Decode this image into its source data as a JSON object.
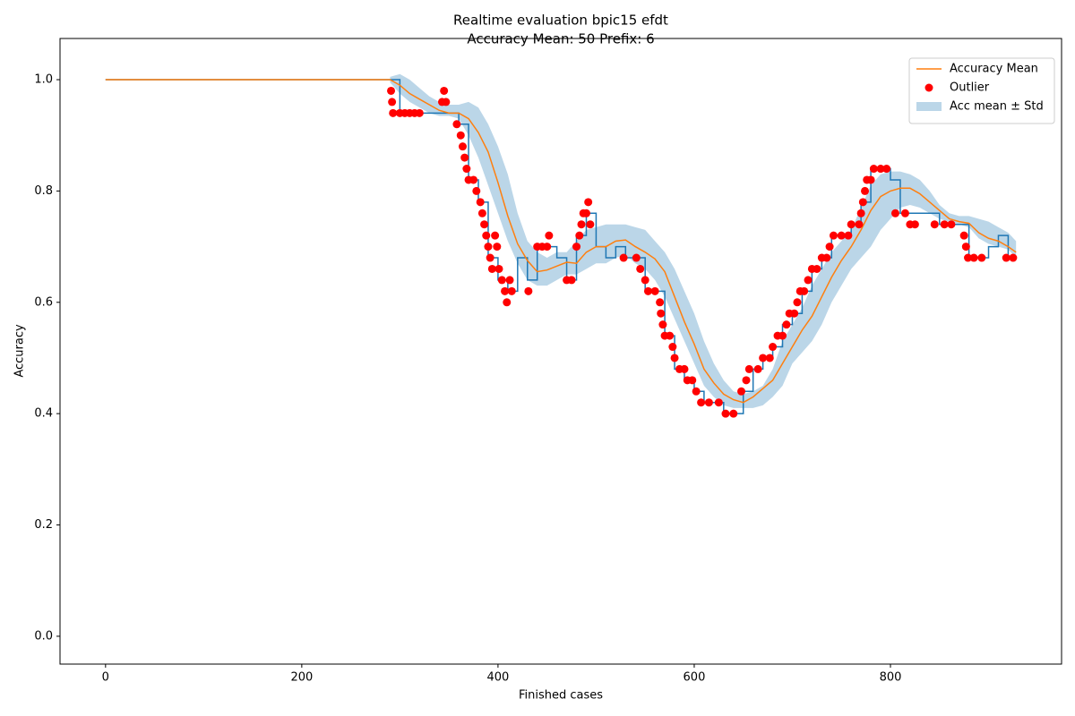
{
  "chart_data": {
    "type": "line",
    "title": "Realtime evaluation bpic15 efdt",
    "subtitle": "Accuracy Mean: 50 Prefix: 6",
    "x_label": "Finished cases",
    "y_label": "Accuracy",
    "xlim": [
      -46.4,
      974.4
    ],
    "ylim": [
      -0.05,
      1.074
    ],
    "xticks": [
      0,
      200,
      400,
      600,
      800
    ],
    "yticks": [
      {
        "value": 0,
        "label": "0.0"
      },
      0.2,
      0.4,
      0.6,
      0.8,
      {
        "value": 1,
        "label": "1.0"
      }
    ],
    "legend": "upper right",
    "x": [
      0,
      100,
      200,
      290,
      300,
      310,
      320,
      330,
      340,
      350,
      360,
      370,
      380,
      390,
      400,
      410,
      420,
      430,
      440,
      450,
      460,
      470,
      480,
      490,
      500,
      510,
      520,
      530,
      540,
      550,
      560,
      570,
      580,
      590,
      600,
      610,
      620,
      630,
      640,
      650,
      660,
      670,
      680,
      690,
      700,
      710,
      720,
      730,
      740,
      750,
      760,
      770,
      780,
      790,
      800,
      810,
      820,
      830,
      840,
      850,
      860,
      870,
      880,
      890,
      900,
      910,
      920,
      928
    ],
    "series": [
      {
        "name": "Accuracy Mean",
        "kind": "line",
        "color": "#ff7f0e",
        "values": [
          1.0,
          1.0,
          1.0,
          1.0,
          0.99,
          0.975,
          0.965,
          0.955,
          0.945,
          0.94,
          0.94,
          0.93,
          0.905,
          0.87,
          0.815,
          0.755,
          0.705,
          0.675,
          0.655,
          0.658,
          0.665,
          0.672,
          0.67,
          0.69,
          0.7,
          0.7,
          0.71,
          0.712,
          0.7,
          0.69,
          0.678,
          0.655,
          0.61,
          0.565,
          0.525,
          0.48,
          0.455,
          0.435,
          0.425,
          0.42,
          0.43,
          0.445,
          0.46,
          0.49,
          0.52,
          0.55,
          0.575,
          0.61,
          0.645,
          0.675,
          0.7,
          0.73,
          0.765,
          0.79,
          0.8,
          0.805,
          0.805,
          0.795,
          0.78,
          0.765,
          0.75,
          0.745,
          0.742,
          0.725,
          0.715,
          0.71,
          0.7,
          0.69
        ]
      },
      {
        "name": "Outlier",
        "kind": "scatter",
        "color": "#ff0000",
        "x": [
          291,
          292,
          293,
          300,
          305,
          310,
          315,
          320,
          343,
          345,
          347,
          358,
          362,
          364,
          366,
          368,
          370,
          375,
          378,
          382,
          384,
          386,
          388,
          390,
          392,
          394,
          397,
          399,
          401,
          404,
          407,
          409,
          412,
          414,
          431,
          440,
          445,
          450,
          452,
          470,
          475,
          480,
          483,
          485,
          487,
          490,
          492,
          494,
          528,
          541,
          545,
          550,
          553,
          560,
          565,
          566,
          568,
          570,
          575,
          578,
          580,
          585,
          590,
          593,
          598,
          602,
          607,
          615,
          625,
          632,
          640,
          648,
          653,
          656,
          665,
          670,
          677,
          680,
          685,
          690,
          694,
          697,
          702,
          705,
          708,
          712,
          716,
          720,
          725,
          730,
          735,
          738,
          742,
          750,
          757,
          760,
          768,
          770,
          772,
          774,
          776,
          780,
          783,
          790,
          796,
          805,
          815,
          820,
          825,
          845,
          855,
          862,
          875,
          877,
          879,
          885,
          893,
          918,
          925
        ],
        "values": [
          0.98,
          0.96,
          0.94,
          0.94,
          0.94,
          0.94,
          0.94,
          0.94,
          0.96,
          0.98,
          0.96,
          0.92,
          0.9,
          0.88,
          0.86,
          0.84,
          0.82,
          0.82,
          0.8,
          0.78,
          0.76,
          0.74,
          0.72,
          0.7,
          0.68,
          0.66,
          0.72,
          0.7,
          0.66,
          0.64,
          0.62,
          0.6,
          0.64,
          0.62,
          0.62,
          0.7,
          0.7,
          0.7,
          0.72,
          0.64,
          0.64,
          0.7,
          0.72,
          0.74,
          0.76,
          0.76,
          0.78,
          0.74,
          0.68,
          0.68,
          0.66,
          0.64,
          0.62,
          0.62,
          0.6,
          0.58,
          0.56,
          0.54,
          0.54,
          0.52,
          0.5,
          0.48,
          0.48,
          0.46,
          0.46,
          0.44,
          0.42,
          0.42,
          0.42,
          0.4,
          0.4,
          0.44,
          0.46,
          0.48,
          0.48,
          0.5,
          0.5,
          0.52,
          0.54,
          0.54,
          0.56,
          0.58,
          0.58,
          0.6,
          0.62,
          0.62,
          0.64,
          0.66,
          0.66,
          0.68,
          0.68,
          0.7,
          0.72,
          0.72,
          0.72,
          0.74,
          0.74,
          0.76,
          0.78,
          0.8,
          0.82,
          0.82,
          0.84,
          0.84,
          0.84,
          0.76,
          0.76,
          0.74,
          0.74,
          0.74,
          0.74,
          0.74,
          0.72,
          0.7,
          0.68,
          0.68,
          0.68,
          0.68,
          0.68
        ]
      },
      {
        "name": "Acc mean ± Std",
        "kind": "band",
        "color": "#1f77b4",
        "lower": [
          null,
          null,
          null,
          0.995,
          0.975,
          0.96,
          0.95,
          0.94,
          0.935,
          0.935,
          0.93,
          0.9,
          0.86,
          0.81,
          0.76,
          0.71,
          0.67,
          0.64,
          0.63,
          0.63,
          0.64,
          0.65,
          0.65,
          0.66,
          0.67,
          0.67,
          0.68,
          0.685,
          0.67,
          0.66,
          0.64,
          0.61,
          0.57,
          0.53,
          0.49,
          0.45,
          0.43,
          0.415,
          0.41,
          0.41,
          0.41,
          0.415,
          0.43,
          0.45,
          0.49,
          0.51,
          0.53,
          0.56,
          0.6,
          0.63,
          0.66,
          0.68,
          0.7,
          0.73,
          0.75,
          0.77,
          0.775,
          0.77,
          0.76,
          0.75,
          0.745,
          0.74,
          0.735,
          0.715,
          0.705,
          0.7,
          0.695,
          0.68
        ],
        "upper": [
          null,
          null,
          null,
          1.005,
          1.01,
          1.0,
          0.985,
          0.97,
          0.96,
          0.955,
          0.955,
          0.96,
          0.95,
          0.92,
          0.88,
          0.83,
          0.76,
          0.71,
          0.69,
          0.68,
          0.69,
          0.69,
          0.71,
          0.73,
          0.735,
          0.74,
          0.74,
          0.74,
          0.735,
          0.73,
          0.71,
          0.69,
          0.66,
          0.62,
          0.58,
          0.53,
          0.49,
          0.46,
          0.44,
          0.435,
          0.44,
          0.45,
          0.48,
          0.53,
          0.56,
          0.59,
          0.63,
          0.66,
          0.69,
          0.71,
          0.73,
          0.77,
          0.81,
          0.83,
          0.835,
          0.835,
          0.83,
          0.82,
          0.8,
          0.775,
          0.76,
          0.755,
          0.755,
          0.75,
          0.745,
          0.735,
          0.725,
          0.71
        ]
      },
      {
        "kind": "step",
        "color": "#1f77b4",
        "values": [
          1.0,
          1.0,
          1.0,
          1.0,
          0.94,
          0.94,
          0.94,
          0.94,
          0.94,
          0.94,
          0.92,
          0.82,
          0.78,
          0.68,
          0.64,
          0.62,
          0.68,
          0.64,
          0.7,
          0.7,
          0.68,
          0.64,
          0.72,
          0.76,
          0.7,
          0.68,
          0.7,
          0.68,
          0.68,
          0.62,
          0.62,
          0.54,
          0.48,
          0.46,
          0.44,
          0.42,
          0.42,
          0.4,
          0.4,
          0.44,
          0.48,
          0.5,
          0.52,
          0.56,
          0.58,
          0.62,
          0.66,
          0.68,
          0.72,
          0.72,
          0.74,
          0.78,
          0.84,
          0.84,
          0.82,
          0.76,
          0.76,
          0.76,
          0.76,
          0.74,
          0.74,
          0.74,
          0.68,
          0.68,
          0.7,
          0.72,
          0.68,
          0.68
        ]
      }
    ]
  }
}
